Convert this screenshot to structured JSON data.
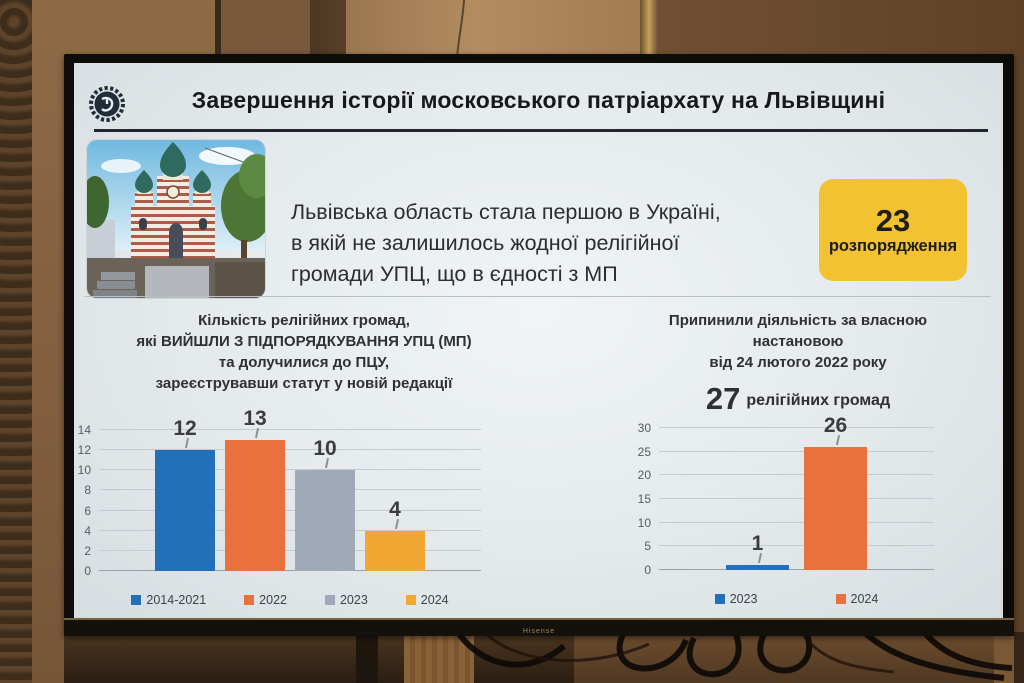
{
  "tv": {
    "brand": "Hisense"
  },
  "slide": {
    "header": {
      "emblem_icon": "gear-emblem-icon",
      "title": "Завершення історії московського патріархату на Львівщині"
    },
    "intro": {
      "photo_icon": "church-photo",
      "text_lines": [
        "Львівська область стала першою в Україні,",
        "в якій не залишилось жодної релігійної",
        "громади УПЦ, що в єдності з МП"
      ],
      "badge": {
        "number": "23",
        "label": "розпорядження",
        "bg_color": "#F2C233"
      }
    }
  },
  "chart_data": [
    {
      "type": "bar",
      "title_lines": [
        "Кількість релігійних громад,",
        "які ВИЙШЛИ З ПІДПОРЯДКУВАННЯ УПЦ (МП)",
        "та долучилися до ПЦУ,",
        "зареєструвавши статут у новій редакції"
      ],
      "categories": [
        "2014-2021",
        "2022",
        "2023",
        "2024"
      ],
      "values": [
        12,
        13,
        10,
        4
      ],
      "bar_colors": [
        "#2271B8",
        "#E8713E",
        "#9FA9B7",
        "#F0A832"
      ],
      "ylim": [
        0,
        14
      ],
      "ytick_step": 2,
      "grid": true,
      "legend_position": "bottom",
      "data_labels": true
    },
    {
      "type": "bar",
      "title_lines": [
        "Припинили діяльність за власною",
        "настановою",
        "від 24 лютого 2022 року"
      ],
      "stat_number": "27",
      "stat_label": "релігійних громад",
      "categories": [
        "2023",
        "2024"
      ],
      "values": [
        1,
        26
      ],
      "bar_colors": [
        "#2271B8",
        "#E8713E"
      ],
      "ylim": [
        0,
        30
      ],
      "ytick_step": 5,
      "grid": true,
      "legend_position": "bottom",
      "data_labels": true
    }
  ]
}
